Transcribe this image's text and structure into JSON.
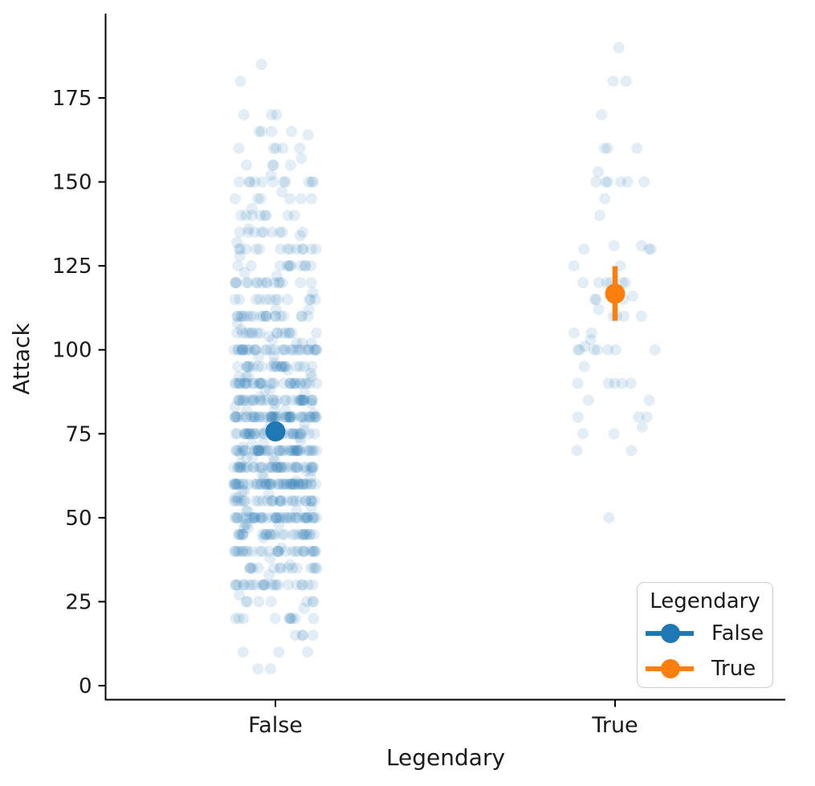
{
  "chart_data": {
    "type": "scatter",
    "subtype": "strip-plot-with-point-estimates",
    "title": "",
    "xlabel": "Legendary",
    "ylabel": "Attack",
    "categories": [
      "False",
      "True"
    ],
    "yticks": [
      0,
      25,
      50,
      75,
      100,
      125,
      150,
      175
    ],
    "ylim": [
      -5,
      200
    ],
    "grid": false,
    "legend": {
      "title": "Legendary",
      "position": "lower right",
      "entries": [
        {
          "label": "False",
          "color": "#1f77b4"
        },
        {
          "label": "True",
          "color": "#ff7f0e"
        }
      ]
    },
    "point_estimates": [
      {
        "category": "False",
        "mean": 75.7,
        "ci_low": 73.4,
        "ci_high": 78.0,
        "color": "#1f77b4"
      },
      {
        "category": "True",
        "mean": 116.7,
        "ci_low": 108.7,
        "ci_high": 124.9,
        "color": "#ff7f0e"
      }
    ],
    "strip": {
      "color": "#1f77b4",
      "opacity": 0.13,
      "histograms": {
        "False": {
          "5": 2,
          "10": 3,
          "15": 4,
          "20": 10,
          "23": 1,
          "25": 7,
          "27": 1,
          "30": 22,
          "33": 1,
          "35": 15,
          "36": 1,
          "38": 1,
          "40": 28,
          "41": 1,
          "44": 1,
          "45": 27,
          "47": 2,
          "48": 3,
          "50": 42,
          "52": 3,
          "53": 1,
          "55": 28,
          "56": 2,
          "57": 1,
          "58": 2,
          "60": 48,
          "61": 1,
          "62": 2,
          "63": 1,
          "64": 2,
          "65": 38,
          "66": 1,
          "67": 1,
          "68": 3,
          "69": 1,
          "70": 42,
          "71": 1,
          "72": 2,
          "73": 1,
          "74": 1,
          "75": 32,
          "76": 2,
          "78": 2,
          "80": 48,
          "81": 1,
          "82": 3,
          "83": 1,
          "84": 2,
          "85": 32,
          "86": 1,
          "87": 1,
          "88": 2,
          "90": 32,
          "92": 4,
          "93": 1,
          "94": 1,
          "95": 22,
          "96": 1,
          "98": 2,
          "100": 32,
          "102": 3,
          "103": 1,
          "104": 1,
          "105": 16,
          "106": 1,
          "108": 1,
          "110": 20,
          "112": 2,
          "115": 12,
          "117": 1,
          "120": 16,
          "122": 1,
          "123": 1,
          "125": 11,
          "128": 1,
          "130": 13,
          "132": 1,
          "134": 1,
          "135": 9,
          "136": 1,
          "140": 8,
          "142": 1,
          "145": 6,
          "147": 1,
          "150": 11,
          "152": 1,
          "155": 4,
          "157": 1,
          "160": 5,
          "164": 1,
          "165": 4,
          "170": 3,
          "180": 1,
          "185": 1
        },
        "True": {
          "50": 1,
          "70": 2,
          "75": 2,
          "77": 1,
          "80": 3,
          "85": 2,
          "90": 5,
          "95": 1,
          "100": 7,
          "101": 1,
          "103": 1,
          "105": 2,
          "110": 4,
          "112": 1,
          "115": 3,
          "116": 1,
          "120": 6,
          "125": 2,
          "130": 3,
          "131": 2,
          "140": 1,
          "145": 1,
          "150": 6,
          "153": 1,
          "160": 3,
          "170": 1,
          "180": 2,
          "190": 1
        }
      }
    },
    "colors": {
      "axis": "#000000",
      "text": "#1a1a1a",
      "blue": "#1f77b4",
      "orange": "#ff7f0e",
      "legend_border": "#cccccc"
    }
  }
}
